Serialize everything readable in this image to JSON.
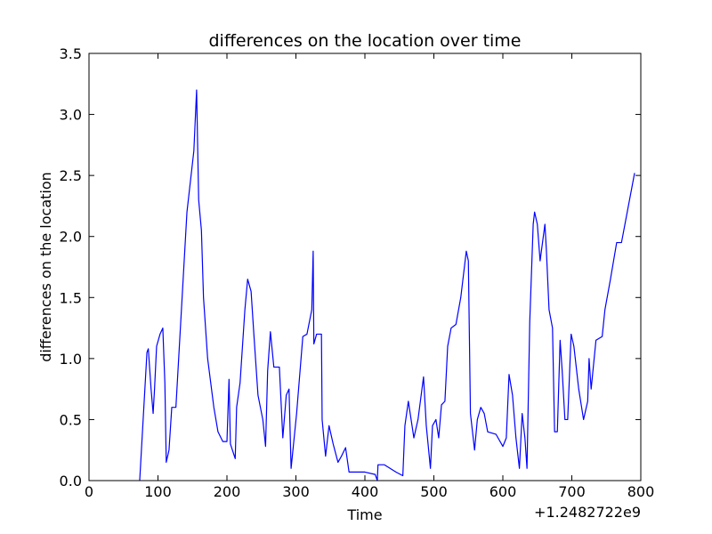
{
  "chart_data": {
    "type": "line",
    "title": "differences on the location over time",
    "xlabel": "Time",
    "ylabel": "differences on the location",
    "x_offset_label": "+1.2482722e9",
    "xlim": [
      0,
      800
    ],
    "ylim": [
      0,
      3.5
    ],
    "xticks": [
      0,
      100,
      200,
      300,
      400,
      500,
      600,
      700,
      800
    ],
    "yticks": [
      {
        "value": 0,
        "label": "0.0"
      },
      0.5,
      {
        "value": 1,
        "label": "1.0"
      },
      1.5,
      {
        "value": 2,
        "label": "2.0"
      },
      2.5,
      {
        "value": 3,
        "label": "3.0"
      },
      3.5
    ],
    "grid": false,
    "series": [
      {
        "color": "#0000ff",
        "x": [
          73.5,
          81,
          84,
          86,
          90,
          93,
          95,
          98,
          103,
          107,
          110,
          112,
          116,
          120,
          126,
          142,
          152,
          156,
          159,
          163,
          166,
          172,
          181,
          187,
          194,
          200,
          203,
          205,
          212,
          214,
          219,
          226,
          230,
          235,
          239,
          245,
          252,
          256,
          259,
          263,
          268,
          276,
          281,
          286,
          290,
          293,
          301,
          310,
          316,
          323,
          325,
          326,
          330,
          337,
          338,
          343,
          348,
          354,
          361,
          366,
          372,
          377,
          400,
          415,
          418,
          419,
          428,
          445,
          455,
          458,
          463,
          471,
          477,
          485,
          489,
          495,
          498,
          503,
          507,
          511,
          516,
          520,
          525,
          532,
          539,
          547,
          550,
          553,
          559,
          563,
          568,
          573,
          578,
          590,
          600,
          605,
          609,
          614,
          619,
          624,
          628,
          632,
          635,
          639,
          644,
          646,
          650,
          654,
          661,
          663,
          667,
          672,
          675,
          679,
          683,
          686,
          690,
          694,
          699,
          703,
          710,
          717,
          723,
          725,
          728,
          735,
          744,
          748,
          756,
          765,
          772,
          791
        ],
        "values": [
          0,
          0.75,
          1.05,
          1.08,
          0.75,
          0.55,
          0.75,
          1.1,
          1.2,
          1.25,
          0.8,
          0.15,
          0.25,
          0.6,
          0.6,
          2.2,
          2.7,
          3.2,
          2.3,
          2.05,
          1.5,
          1.0,
          0.6,
          0.4,
          0.32,
          0.32,
          0.83,
          0.3,
          0.18,
          0.6,
          0.8,
          1.4,
          1.65,
          1.55,
          1.2,
          0.7,
          0.5,
          0.28,
          0.9,
          1.22,
          0.93,
          0.93,
          0.35,
          0.7,
          0.75,
          0.1,
          0.55,
          1.18,
          1.2,
          1.4,
          1.88,
          1.12,
          1.2,
          1.2,
          0.5,
          0.2,
          0.45,
          0.3,
          0.15,
          0.2,
          0.27,
          0.07,
          0.07,
          0.05,
          0,
          0.13,
          0.13,
          0.07,
          0.04,
          0.45,
          0.65,
          0.35,
          0.5,
          0.85,
          0.45,
          0.1,
          0.45,
          0.5,
          0.35,
          0.62,
          0.65,
          1.1,
          1.25,
          1.28,
          1.5,
          1.88,
          1.8,
          0.55,
          0.25,
          0.5,
          0.6,
          0.55,
          0.4,
          0.38,
          0.28,
          0.35,
          0.87,
          0.7,
          0.35,
          0.1,
          0.55,
          0.35,
          0.1,
          1.3,
          2.1,
          2.2,
          2.1,
          1.8,
          2.1,
          1.9,
          1.4,
          1.25,
          0.4,
          0.4,
          1.15,
          0.9,
          0.5,
          0.5,
          1.2,
          1.1,
          0.75,
          0.5,
          0.65,
          1.0,
          0.75,
          1.15,
          1.18,
          1.4,
          1.65,
          1.95,
          1.95,
          2.52
        ]
      }
    ]
  }
}
